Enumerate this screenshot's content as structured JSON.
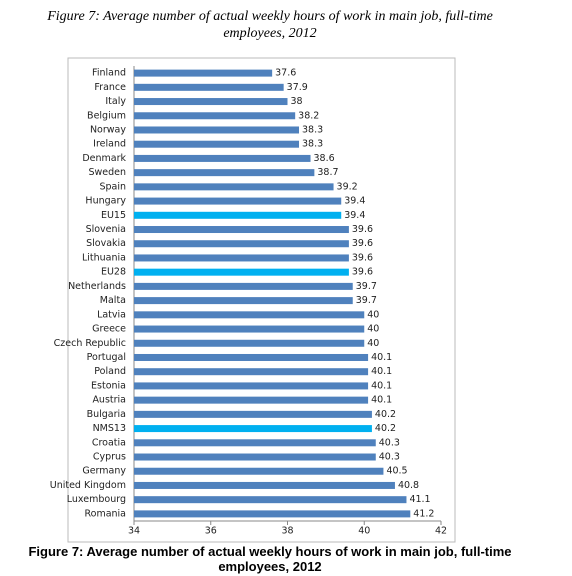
{
  "chart_data": {
    "type": "bar",
    "orientation": "horizontal",
    "title": "Figure 7: Average number of actual weekly hours of work in main job, full-time employees, 2012",
    "caption": "Figure 7: Average number of actual weekly hours of work in main job, full-time employees, 2012",
    "categories": [
      "Finland",
      "France",
      "Italy",
      "Belgium",
      "Norway",
      "Ireland",
      "Denmark",
      "Sweden",
      "Spain",
      "Hungary",
      "EU15",
      "Slovenia",
      "Slovakia",
      "Lithuania",
      "EU28",
      "Netherlands",
      "Malta",
      "Latvia",
      "Greece",
      "Czech Republic",
      "Portugal",
      "Poland",
      "Estonia",
      "Austria",
      "Bulgaria",
      "NMS13",
      "Croatia",
      "Cyprus",
      "Germany",
      "United Kingdom",
      "Luxembourg",
      "Romania"
    ],
    "values": [
      37.6,
      37.9,
      38,
      38.2,
      38.3,
      38.3,
      38.6,
      38.7,
      39.2,
      39.4,
      39.4,
      39.6,
      39.6,
      39.6,
      39.6,
      39.7,
      39.7,
      40,
      40,
      40,
      40.1,
      40.1,
      40.1,
      40.1,
      40.2,
      40.2,
      40.3,
      40.3,
      40.5,
      40.8,
      41.1,
      41.2
    ],
    "colors": [
      "#4f81bd",
      "#4f81bd",
      "#4f81bd",
      "#4f81bd",
      "#4f81bd",
      "#4f81bd",
      "#4f81bd",
      "#4f81bd",
      "#4f81bd",
      "#4f81bd",
      "#00b0f0",
      "#4f81bd",
      "#4f81bd",
      "#4f81bd",
      "#00b0f0",
      "#4f81bd",
      "#4f81bd",
      "#4f81bd",
      "#4f81bd",
      "#4f81bd",
      "#4f81bd",
      "#4f81bd",
      "#4f81bd",
      "#4f81bd",
      "#4f81bd",
      "#00b0f0",
      "#4f81bd",
      "#4f81bd",
      "#4f81bd",
      "#4f81bd",
      "#4f81bd",
      "#4f81bd"
    ],
    "xlim": [
      34,
      42
    ],
    "xticks": [
      34,
      36,
      38,
      40,
      42
    ],
    "grid": false
  }
}
